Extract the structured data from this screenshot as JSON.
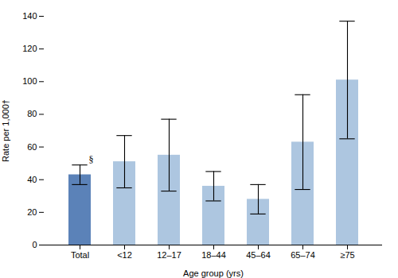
{
  "chart_data": {
    "type": "bar",
    "categories": [
      "Total",
      "<12",
      "12–17",
      "18–44",
      "45–64",
      "65–74",
      "≥75"
    ],
    "values": [
      43,
      51,
      55,
      36,
      28,
      63,
      101
    ],
    "ci_lower": [
      37,
      35,
      33,
      27,
      19,
      34,
      65
    ],
    "ci_upper": [
      49,
      67,
      77,
      45,
      37,
      92,
      137
    ],
    "colors": [
      "#5b82b8",
      "#adc6e0",
      "#adc6e0",
      "#adc6e0",
      "#adc6e0",
      "#adc6e0",
      "#adc6e0"
    ],
    "ylabel": "Rate per 1,000†",
    "xlabel": "Age group (yrs)",
    "ylim": [
      0,
      140
    ],
    "yticks": [
      0,
      20,
      40,
      60,
      80,
      100,
      120,
      140
    ],
    "grid": false,
    "annotations": [
      {
        "text": "§",
        "x": "Total",
        "y": 49
      }
    ]
  }
}
